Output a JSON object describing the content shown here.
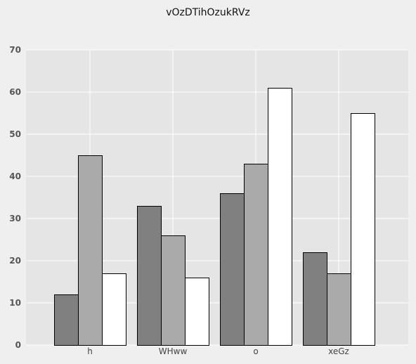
{
  "chart_data": {
    "type": "bar",
    "title": "vOzDTihOzukRVz",
    "xlabel": "",
    "ylabel": "",
    "categories": [
      "h",
      "WHww",
      "o",
      "xeGz"
    ],
    "series": [
      {
        "values": [
          12,
          33,
          36,
          22
        ]
      },
      {
        "values": [
          45,
          26,
          43,
          17
        ]
      },
      {
        "values": [
          17,
          16,
          61,
          55
        ]
      }
    ],
    "ylim": [
      0,
      70
    ],
    "yticks": [
      0,
      10,
      20,
      30,
      40,
      50,
      60,
      70
    ],
    "grid": true,
    "legend": "none"
  },
  "colors": {
    "plot_background": "#e5e5e5",
    "grid": "#ffffff",
    "series": [
      "#808080",
      "#aaaaaa",
      "#ffffff"
    ],
    "bar_edge": "#000000"
  }
}
